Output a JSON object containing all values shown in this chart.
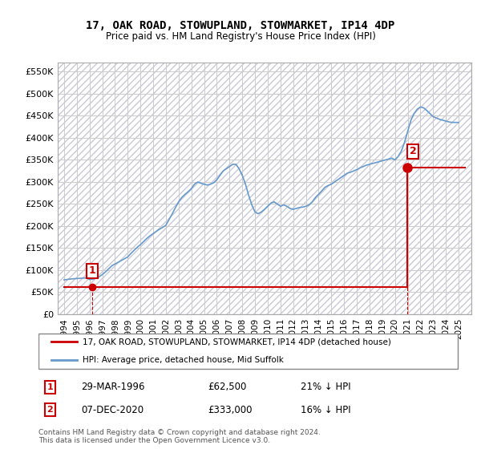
{
  "title": "17, OAK ROAD, STOWUPLAND, STOWMARKET, IP14 4DP",
  "subtitle": "Price paid vs. HM Land Registry's House Price Index (HPI)",
  "ylabel_ticks": [
    "£0",
    "£50K",
    "£100K",
    "£150K",
    "£200K",
    "£250K",
    "£300K",
    "£350K",
    "£400K",
    "£450K",
    "£500K",
    "£550K"
  ],
  "ylabel_values": [
    0,
    50000,
    100000,
    150000,
    200000,
    250000,
    300000,
    350000,
    400000,
    450000,
    500000,
    550000
  ],
  "ylim": [
    0,
    570000
  ],
  "xmin": 1993.5,
  "xmax": 2026.0,
  "price_color": "#cc0000",
  "hpi_color": "#6699cc",
  "background_hatch_color": "#e8e8f0",
  "sale1_date": "29-MAR-1996",
  "sale1_price": 62500,
  "sale1_label": "1",
  "sale1_year": 1996.23,
  "sale2_date": "07-DEC-2020",
  "sale2_price": 333000,
  "sale2_label": "2",
  "sale2_year": 2020.93,
  "legend_line1": "17, OAK ROAD, STOWUPLAND, STOWMARKET, IP14 4DP (detached house)",
  "legend_line2": "HPI: Average price, detached house, Mid Suffolk",
  "table_row1": [
    "1",
    "29-MAR-1996",
    "£62,500",
    "21% ↓ HPI"
  ],
  "table_row2": [
    "2",
    "07-DEC-2020",
    "£333,000",
    "16% ↓ HPI"
  ],
  "footnote": "Contains HM Land Registry data © Crown copyright and database right 2024.\nThis data is licensed under the Open Government Licence v3.0.",
  "grid_color": "#cccccc",
  "hpi_data_x": [
    1994.0,
    1994.25,
    1994.5,
    1994.75,
    1995.0,
    1995.25,
    1995.5,
    1995.75,
    1996.0,
    1996.25,
    1996.5,
    1996.75,
    1997.0,
    1997.25,
    1997.5,
    1997.75,
    1998.0,
    1998.25,
    1998.5,
    1998.75,
    1999.0,
    1999.25,
    1999.5,
    1999.75,
    2000.0,
    2000.25,
    2000.5,
    2000.75,
    2001.0,
    2001.25,
    2001.5,
    2001.75,
    2002.0,
    2002.25,
    2002.5,
    2002.75,
    2003.0,
    2003.25,
    2003.5,
    2003.75,
    2004.0,
    2004.25,
    2004.5,
    2004.75,
    2005.0,
    2005.25,
    2005.5,
    2005.75,
    2006.0,
    2006.25,
    2006.5,
    2006.75,
    2007.0,
    2007.25,
    2007.5,
    2007.75,
    2008.0,
    2008.25,
    2008.5,
    2008.75,
    2009.0,
    2009.25,
    2009.5,
    2009.75,
    2010.0,
    2010.25,
    2010.5,
    2010.75,
    2011.0,
    2011.25,
    2011.5,
    2011.75,
    2012.0,
    2012.25,
    2012.5,
    2012.75,
    2013.0,
    2013.25,
    2013.5,
    2013.75,
    2014.0,
    2014.25,
    2014.5,
    2014.75,
    2015.0,
    2015.25,
    2015.5,
    2015.75,
    2016.0,
    2016.25,
    2016.5,
    2016.75,
    2017.0,
    2017.25,
    2017.5,
    2017.75,
    2018.0,
    2018.25,
    2018.5,
    2018.75,
    2019.0,
    2019.25,
    2019.5,
    2019.75,
    2020.0,
    2020.25,
    2020.5,
    2020.75,
    2021.0,
    2021.25,
    2021.5,
    2021.75,
    2022.0,
    2022.25,
    2022.5,
    2022.75,
    2023.0,
    2023.25,
    2023.5,
    2023.75,
    2024.0,
    2024.25,
    2024.5,
    2024.75,
    2025.0
  ],
  "hpi_data_y": [
    78000,
    79000,
    80000,
    80500,
    81000,
    81500,
    82000,
    82500,
    79000,
    79500,
    82000,
    85000,
    90000,
    96000,
    103000,
    110000,
    114000,
    118000,
    122000,
    126000,
    130000,
    138000,
    145000,
    152000,
    158000,
    165000,
    172000,
    178000,
    183000,
    188000,
    193000,
    197000,
    202000,
    215000,
    228000,
    242000,
    255000,
    265000,
    272000,
    278000,
    285000,
    295000,
    300000,
    297000,
    295000,
    293000,
    295000,
    298000,
    305000,
    315000,
    325000,
    330000,
    335000,
    340000,
    340000,
    330000,
    315000,
    295000,
    270000,
    248000,
    232000,
    228000,
    232000,
    238000,
    245000,
    252000,
    255000,
    250000,
    245000,
    248000,
    245000,
    240000,
    238000,
    240000,
    242000,
    243000,
    245000,
    248000,
    255000,
    265000,
    272000,
    280000,
    288000,
    292000,
    295000,
    300000,
    305000,
    310000,
    315000,
    320000,
    322000,
    325000,
    328000,
    332000,
    335000,
    338000,
    340000,
    342000,
    344000,
    346000,
    348000,
    350000,
    352000,
    354000,
    350000,
    358000,
    370000,
    390000,
    415000,
    440000,
    455000,
    465000,
    470000,
    468000,
    462000,
    455000,
    448000,
    445000,
    442000,
    440000,
    438000,
    436000,
    435000,
    435000,
    435000
  ],
  "price_data_x": [
    1994.0,
    1996.23,
    2020.93,
    2025.5
  ],
  "price_data_y": [
    62500,
    62500,
    333000,
    333000
  ],
  "dashed_line1_x": [
    1996.23,
    1996.23
  ],
  "dashed_line1_y": [
    0,
    62500
  ],
  "dashed_line2_x": [
    2020.93,
    2020.93
  ],
  "dashed_line2_y": [
    0,
    333000
  ]
}
